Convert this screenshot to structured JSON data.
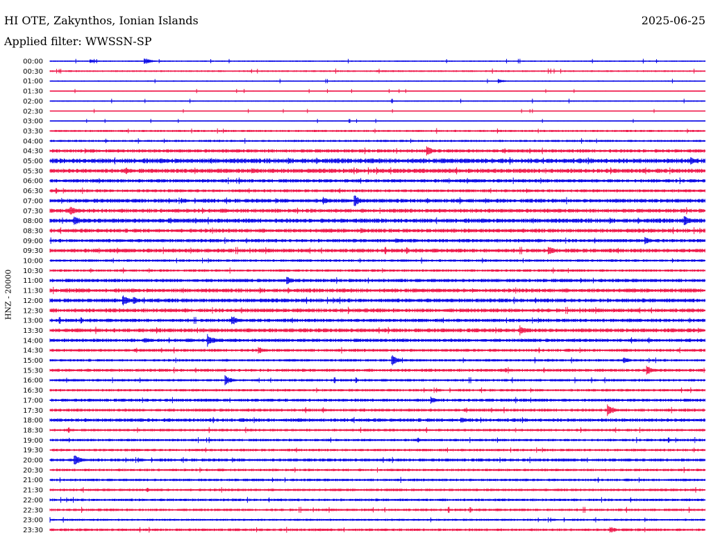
{
  "header": {
    "station": "HI OTE, Zakynthos, Ionian Islands",
    "date": "2025-06-25",
    "filter": "Applied filter: WWSSN-SP"
  },
  "axis": {
    "ylabel": "HNZ - 20000"
  },
  "colors": {
    "even_hour_trace": "#0000e6",
    "half_hour_trace": "#ee1144",
    "background": "#ffffff",
    "text": "#000000"
  },
  "chart_data": {
    "type": "line",
    "title": "HI OTE, Zakynthos, Ionian Islands",
    "subtitle": "Applied filter: WWSSN-SP",
    "ylabel": "HNZ - 20000",
    "row_labels": [
      "00:00",
      "00:30",
      "01:00",
      "01:30",
      "02:00",
      "02:30",
      "03:00",
      "03:30",
      "04:00",
      "04:30",
      "05:00",
      "05:30",
      "06:00",
      "06:30",
      "07:00",
      "07:30",
      "08:00",
      "08:30",
      "09:00",
      "09:30",
      "10:00",
      "10:30",
      "11:00",
      "11:30",
      "12:00",
      "12:30",
      "13:00",
      "13:30",
      "14:00",
      "14:30",
      "15:00",
      "15:30",
      "16:00",
      "16:30",
      "17:00",
      "17:30",
      "18:00",
      "18:30",
      "19:00",
      "19:30",
      "20:00",
      "20:30",
      "21:00",
      "21:30",
      "22:00",
      "22:30",
      "23:00",
      "23:30"
    ],
    "row_colors": [
      "blue",
      "red"
    ],
    "row_noise_amplitude": [
      0.15,
      0.2,
      0.15,
      0.1,
      0.15,
      0.1,
      0.1,
      0.25,
      0.25,
      0.4,
      0.55,
      0.5,
      0.4,
      0.35,
      0.45,
      0.45,
      0.5,
      0.45,
      0.4,
      0.45,
      0.3,
      0.3,
      0.4,
      0.45,
      0.45,
      0.45,
      0.4,
      0.45,
      0.4,
      0.35,
      0.3,
      0.35,
      0.3,
      0.3,
      0.35,
      0.35,
      0.4,
      0.3,
      0.3,
      0.3,
      0.35,
      0.3,
      0.3,
      0.3,
      0.3,
      0.3,
      0.25,
      0.3
    ],
    "events": [
      {
        "row": "00:00",
        "minute": 4.3,
        "amplitude": 0.9
      },
      {
        "row": "00:00",
        "minute": 1.8,
        "amplitude": 0.5
      },
      {
        "row": "01:00",
        "minute": 20.5,
        "amplitude": 0.6
      },
      {
        "row": "04:30",
        "minute": 17.2,
        "amplitude": 1.3
      },
      {
        "row": "04:30",
        "minute": 1.6,
        "amplitude": 0.6
      },
      {
        "row": "05:00",
        "minute": 29.3,
        "amplitude": 1.2
      },
      {
        "row": "05:30",
        "minute": 9.2,
        "amplitude": 0.9
      },
      {
        "row": "05:30",
        "minute": 14.0,
        "amplitude": 0.7
      },
      {
        "row": "06:30",
        "minute": 21.8,
        "amplitude": 0.6
      },
      {
        "row": "07:00",
        "minute": 12.5,
        "amplitude": 1.0
      },
      {
        "row": "07:00",
        "minute": 13.9,
        "amplitude": 1.6
      },
      {
        "row": "07:30",
        "minute": 0.9,
        "amplitude": 1.1
      },
      {
        "row": "08:00",
        "minute": 1.1,
        "amplitude": 1.3
      },
      {
        "row": "08:00",
        "minute": 29.0,
        "amplitude": 1.4
      },
      {
        "row": "08:30",
        "minute": 14.2,
        "amplitude": 0.8
      },
      {
        "row": "09:00",
        "minute": 15.8,
        "amplitude": 0.7
      },
      {
        "row": "09:00",
        "minute": 27.2,
        "amplitude": 1.0
      },
      {
        "row": "09:30",
        "minute": 22.8,
        "amplitude": 1.2
      },
      {
        "row": "09:30",
        "minute": 7.2,
        "amplitude": 0.6
      },
      {
        "row": "10:30",
        "minute": 10.5,
        "amplitude": 0.5
      },
      {
        "row": "11:00",
        "minute": 10.8,
        "amplitude": 1.1
      },
      {
        "row": "11:30",
        "minute": 1.3,
        "amplitude": 0.6
      },
      {
        "row": "11:30",
        "minute": 19.3,
        "amplitude": 0.6
      },
      {
        "row": "12:00",
        "minute": 3.3,
        "amplitude": 1.4
      },
      {
        "row": "12:00",
        "minute": 3.8,
        "amplitude": 1.0
      },
      {
        "row": "13:00",
        "minute": 8.3,
        "amplitude": 1.3
      },
      {
        "row": "13:30",
        "minute": 21.5,
        "amplitude": 1.2
      },
      {
        "row": "13:30",
        "minute": 9.0,
        "amplitude": 0.7
      },
      {
        "row": "14:00",
        "minute": 7.2,
        "amplitude": 1.5
      },
      {
        "row": "14:00",
        "minute": 4.3,
        "amplitude": 0.8
      },
      {
        "row": "14:30",
        "minute": 9.5,
        "amplitude": 1.0
      },
      {
        "row": "15:00",
        "minute": 15.6,
        "amplitude": 1.5
      },
      {
        "row": "15:00",
        "minute": 26.2,
        "amplitude": 0.9
      },
      {
        "row": "15:30",
        "minute": 27.3,
        "amplitude": 1.2
      },
      {
        "row": "15:30",
        "minute": 20.8,
        "amplitude": 0.6
      },
      {
        "row": "16:00",
        "minute": 8.0,
        "amplitude": 1.2
      },
      {
        "row": "17:00",
        "minute": 17.4,
        "amplitude": 1.0
      },
      {
        "row": "17:30",
        "minute": 25.5,
        "amplitude": 1.5
      },
      {
        "row": "18:00",
        "minute": 18.8,
        "amplitude": 0.9
      },
      {
        "row": "19:00",
        "minute": 16.8,
        "amplitude": 0.5
      },
      {
        "row": "20:00",
        "minute": 1.1,
        "amplitude": 1.3
      },
      {
        "row": "21:30",
        "minute": 4.4,
        "amplitude": 0.6
      },
      {
        "row": "23:30",
        "minute": 25.6,
        "amplitude": 0.9
      }
    ]
  }
}
